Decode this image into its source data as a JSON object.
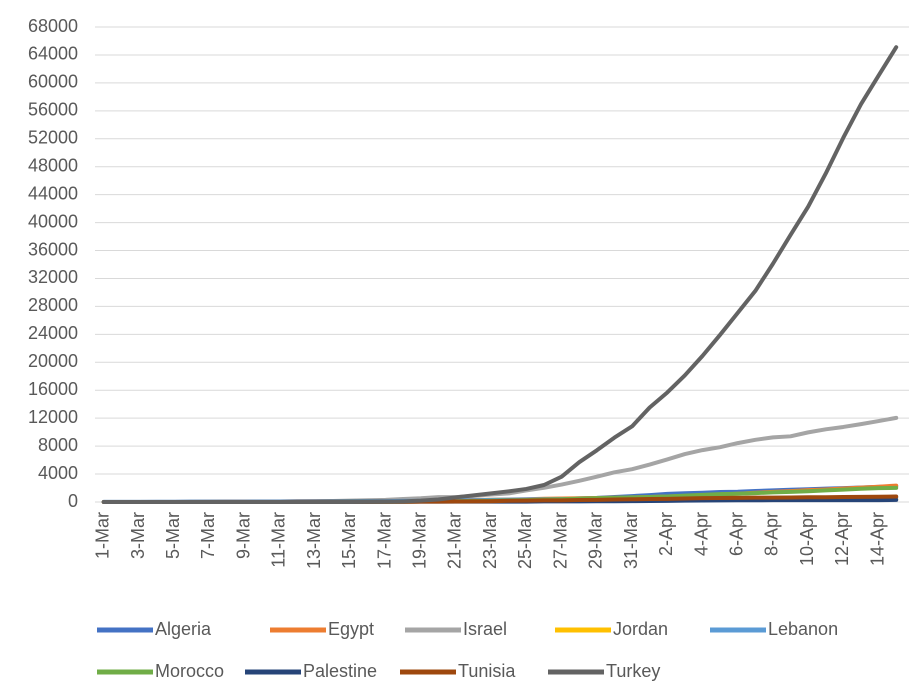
{
  "chart_data": {
    "type": "line",
    "categories": [
      "1-Mar",
      null,
      "3-Mar",
      null,
      "5-Mar",
      null,
      "7-Mar",
      null,
      "9-Mar",
      null,
      "11-Mar",
      null,
      "13-Mar",
      null,
      "15-Mar",
      null,
      "17-Mar",
      null,
      "19-Mar",
      null,
      "21-Mar",
      null,
      "23-Mar",
      null,
      "25-Mar",
      null,
      "27-Mar",
      null,
      "29-Mar",
      null,
      "31-Mar",
      null,
      "2-Apr",
      null,
      "4-Apr",
      null,
      "6-Apr",
      null,
      "8-Apr",
      null,
      "10-Apr",
      null,
      "12-Apr",
      null,
      "14-Apr",
      null
    ],
    "ylim": [
      0,
      68000
    ],
    "yticks": [
      0,
      4000,
      8000,
      12000,
      16000,
      20000,
      24000,
      28000,
      32000,
      36000,
      40000,
      44000,
      48000,
      52000,
      56000,
      60000,
      64000,
      68000
    ],
    "grid": true,
    "legend": "bottom",
    "series": [
      {
        "name": "Algeria",
        "color": "#4472c4",
        "values": [
          1,
          3,
          5,
          12,
          17,
          17,
          19,
          20,
          20,
          20,
          24,
          26,
          37,
          48,
          54,
          60,
          74,
          87,
          90,
          139,
          201,
          230,
          264,
          302,
          367,
          409,
          454,
          511,
          584,
          716,
          847,
          986,
          1171,
          1251,
          1320,
          1423,
          1468,
          1572,
          1666,
          1761,
          1825,
          1914,
          1983,
          2070,
          2160,
          2268
        ]
      },
      {
        "name": "Egypt",
        "color": "#ed7d31",
        "values": [
          2,
          2,
          2,
          2,
          3,
          3,
          15,
          48,
          55,
          59,
          60,
          67,
          80,
          93,
          110,
          126,
          166,
          196,
          210,
          256,
          285,
          294,
          327,
          366,
          402,
          456,
          495,
          536,
          576,
          609,
          656,
          710,
          779,
          865,
          985,
          1070,
          1173,
          1322,
          1450,
          1560,
          1699,
          1794,
          1939,
          2065,
          2190,
          2350
        ]
      },
      {
        "name": "Israel",
        "color": "#a5a5a5",
        "values": [
          10,
          10,
          10,
          12,
          15,
          17,
          21,
          28,
          39,
          50,
          75,
          100,
          126,
          143,
          193,
          250,
          300,
          427,
          529,
          705,
          705,
          883,
          1071,
          1238,
          1656,
          2030,
          2495,
          3035,
          3619,
          4247,
          4695,
          5358,
          6092,
          6857,
          7428,
          7851,
          8430,
          8904,
          9248,
          9404,
          9968,
          10408,
          10743,
          11145,
          11586,
          12046
        ]
      },
      {
        "name": "Jordan",
        "color": "#ffc000",
        "values": [
          0,
          1,
          1,
          1,
          1,
          1,
          1,
          1,
          1,
          1,
          1,
          1,
          1,
          1,
          1,
          8,
          34,
          52,
          69,
          85,
          112,
          127,
          153,
          172,
          212,
          235,
          246,
          259,
          268,
          274,
          299,
          310,
          323,
          345,
          349,
          353,
          358,
          372,
          372,
          381,
          383,
          389,
          391,
          397,
          397,
          401
        ]
      },
      {
        "name": "Lebanon",
        "color": "#5b9bd5",
        "values": [
          10,
          13,
          13,
          16,
          22,
          28,
          32,
          32,
          41,
          61,
          61,
          77,
          77,
          93,
          99,
          120,
          133,
          157,
          163,
          206,
          230,
          256,
          304,
          333,
          368,
          391,
          412,
          438,
          446,
          470,
          479,
          494,
          508,
          520,
          527,
          541,
          548,
          576,
          582,
          609,
          619,
          630,
          632,
          641,
          658,
          663
        ]
      },
      {
        "name": "Morocco",
        "color": "#70ad47",
        "values": [
          0,
          1,
          1,
          1,
          1,
          2,
          2,
          2,
          2,
          3,
          6,
          7,
          8,
          18,
          28,
          38,
          44,
          54,
          63,
          86,
          115,
          143,
          170,
          225,
          275,
          345,
          402,
          479,
          556,
          602,
          654,
          708,
          791,
          919,
          1021,
          1120,
          1184,
          1275,
          1374,
          1448,
          1545,
          1661,
          1763,
          1888,
          1991,
          2024
        ]
      },
      {
        "name": "Palestine",
        "color": "#264478",
        "values": [
          0,
          0,
          0,
          0,
          7,
          16,
          19,
          20,
          25,
          25,
          26,
          30,
          31,
          35,
          38,
          39,
          41,
          44,
          47,
          48,
          52,
          59,
          59,
          60,
          62,
          84,
          91,
          98,
          109,
          115,
          117,
          134,
          161,
          194,
          217,
          237,
          254,
          254,
          261,
          263,
          266,
          267,
          268,
          268,
          268,
          308
        ]
      },
      {
        "name": "Tunisia",
        "color": "#9e480e",
        "values": [
          0,
          1,
          1,
          1,
          1,
          1,
          1,
          2,
          5,
          5,
          7,
          13,
          16,
          18,
          20,
          24,
          29,
          39,
          54,
          54,
          75,
          89,
          114,
          173,
          197,
          227,
          227,
          278,
          312,
          362,
          394,
          423,
          455,
          495,
          553,
          574,
          596,
          623,
          628,
          643,
          671,
          685,
          707,
          726,
          747,
          780
        ]
      },
      {
        "name": "Turkey",
        "color": "#636363",
        "values": [
          0,
          0,
          0,
          0,
          0,
          0,
          0,
          0,
          0,
          0,
          1,
          1,
          5,
          5,
          6,
          18,
          47,
          98,
          191,
          359,
          670,
          947,
          1236,
          1529,
          1872,
          2433,
          3629,
          5698,
          7402,
          9217,
          10827,
          13531,
          15679,
          18135,
          20921,
          23934,
          27069,
          30217,
          34109,
          38226,
          42282,
          47029,
          52167,
          56956,
          61049,
          65111
        ]
      }
    ]
  }
}
